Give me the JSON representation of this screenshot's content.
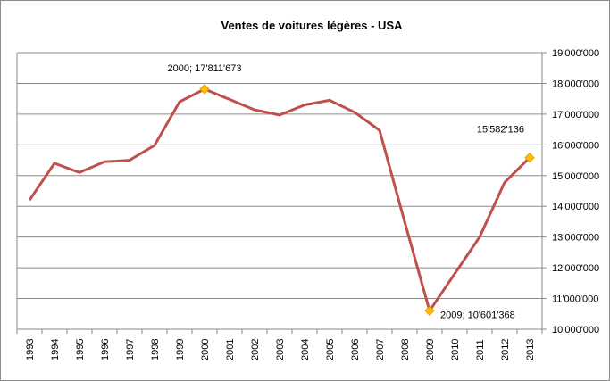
{
  "chart_data": {
    "type": "line",
    "title": "Ventes de voitures légères - USA",
    "xlabel": "",
    "ylabel": "",
    "categories": [
      "1993",
      "1994",
      "1995",
      "1996",
      "1997",
      "1998",
      "1999",
      "2000",
      "2001",
      "2002",
      "2003",
      "2004",
      "2005",
      "2006",
      "2007",
      "2008",
      "2009",
      "2010",
      "2011",
      "2012",
      "2013"
    ],
    "series": [
      {
        "name": "Ventes",
        "color": "#c0504d",
        "values": [
          14200000,
          15400000,
          15100000,
          15450000,
          15500000,
          15980000,
          17400000,
          17811673,
          17480000,
          17140000,
          16970000,
          17300000,
          17450000,
          17060000,
          16470000,
          13500000,
          10601368,
          11800000,
          13000000,
          14780000,
          15582136
        ]
      }
    ],
    "y_axis": {
      "position": "right",
      "ylim": [
        10000000,
        19000000
      ],
      "ticks": [
        10000000,
        11000000,
        12000000,
        13000000,
        14000000,
        15000000,
        16000000,
        17000000,
        18000000,
        19000000
      ],
      "tick_labels": [
        "10'000'000",
        "11'000'000",
        "12'000'000",
        "13'000'000",
        "14'000'000",
        "15'000'000",
        "16'000'000",
        "17'000'000",
        "18'000'000",
        "19'000'000"
      ]
    },
    "grid": true,
    "markers": [
      {
        "category": "2000",
        "value": 17811673,
        "label": "2000; 17'811'673",
        "color": "#ffc000"
      },
      {
        "category": "2009",
        "value": 10601368,
        "label": "2009; 10'601'368",
        "color": "#ffc000"
      },
      {
        "category": "2013",
        "value": 15582136,
        "label": "15'582'136",
        "color": "#ffc000"
      }
    ]
  }
}
